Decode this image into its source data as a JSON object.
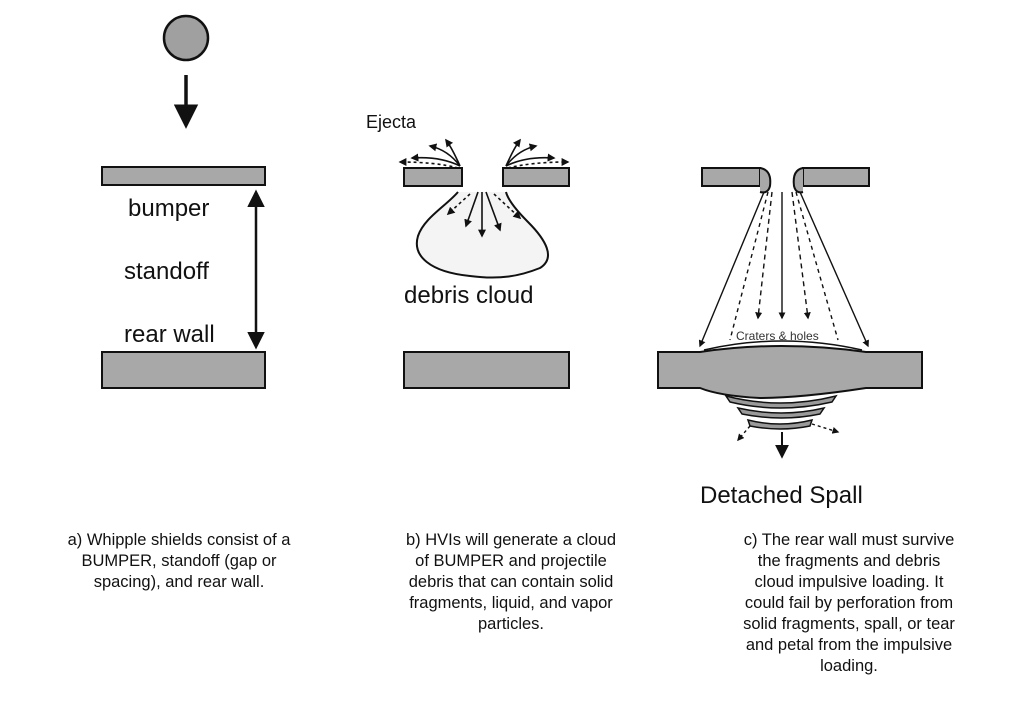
{
  "panel_a": {
    "labels": {
      "bumper": "bumper",
      "standoff": "standoff",
      "rear_wall": "rear wall"
    },
    "caption": "a) Whipple shields consist of a\nBUMPER, standoff (gap or\nspacing), and rear wall."
  },
  "panel_b": {
    "labels": {
      "ejecta": "Ejecta",
      "debris_cloud": "debris cloud"
    },
    "caption": "b) HVIs will generate a cloud\nof BUMPER and projectile\ndebris that can contain solid\nfragments, liquid, and vapor\nparticles."
  },
  "panel_c": {
    "labels": {
      "craters_holes": "Craters & holes",
      "detached_spall": "Detached Spall"
    },
    "caption": "c) The rear wall must survive\nthe fragments and debris\ncloud impulsive loading.  It\ncould fail by perforation from\nsolid fragments, spall, or tear\nand petal from the impulsive\nloading."
  },
  "colors": {
    "plate": "#a8a8a8",
    "projectile": "#a0a0a0",
    "stroke": "#111111"
  }
}
